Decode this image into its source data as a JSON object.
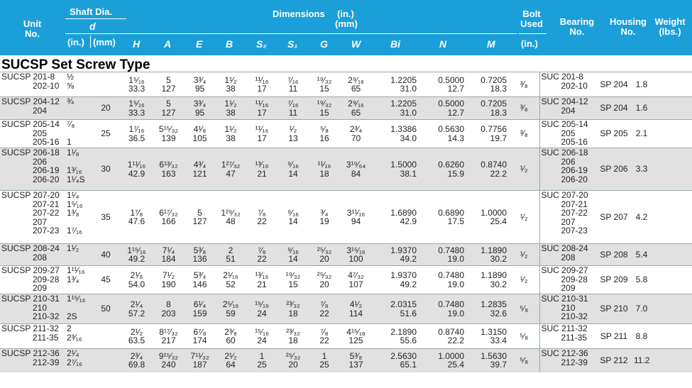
{
  "header": {
    "unit_no": [
      "Unit",
      "No."
    ],
    "shaft_dia": "Shaft Dia.",
    "shaft_d": "d",
    "shaft_in": "(in.)",
    "shaft_mm": "(mm)",
    "dimensions": "Dimensions",
    "dim_units": [
      "(in.)",
      "(mm)"
    ],
    "columns": [
      "H",
      "A",
      "E",
      "B",
      "S₂",
      "S₁",
      "G",
      "W",
      "Bi",
      "N",
      "M"
    ],
    "bolt_used": [
      "Bolt",
      "Used"
    ],
    "bolt_in": "(in.)",
    "bearing_no": [
      "Bearing",
      "No."
    ],
    "housing_no": [
      "Housing",
      "No."
    ],
    "weight": [
      "Weight",
      "(lbs.)"
    ]
  },
  "section_title": "SUCSP Set Screw Type",
  "rows": [
    {
      "unit": [
        "SUCSP 201-8",
        "202-10"
      ],
      "din": [
        "½",
        "⅝"
      ],
      "dmm": "",
      "dims": [
        [
          "1⁵⁄₁₆",
          "33.3"
        ],
        [
          "5",
          "127"
        ],
        [
          "3³⁄₄",
          "95"
        ],
        [
          "1¹⁄₂",
          "38"
        ],
        [
          "¹¹⁄₁₆",
          "17"
        ],
        [
          "⁷⁄₁₆",
          "11"
        ],
        [
          "¹⁹⁄₃₂",
          "15"
        ],
        [
          "2⁹⁄₁₆",
          "65"
        ],
        [
          "1.2205",
          "31.0"
        ],
        [
          "0.5000",
          "12.7"
        ],
        [
          "0.7205",
          "18.3"
        ]
      ],
      "bolt": "³⁄₈",
      "bearing": [
        "SUC 201-8",
        "202-10"
      ],
      "housing": "SP 204",
      "weight": "1.8"
    },
    {
      "unit": [
        "SUCSP 204-12",
        "204"
      ],
      "din": [
        "¾",
        ""
      ],
      "dmm": "20",
      "dims": [
        [
          "1⁵⁄₁₆",
          "33.3"
        ],
        [
          "5",
          "127"
        ],
        [
          "3³⁄₄",
          "95"
        ],
        [
          "1¹⁄₂",
          "38"
        ],
        [
          "¹¹⁄₁₆",
          "17"
        ],
        [
          "⁷⁄₁₆",
          "11"
        ],
        [
          "¹⁹⁄₃₂",
          "15"
        ],
        [
          "2⁹⁄₁₆",
          "65"
        ],
        [
          "1.2205",
          "31.0"
        ],
        [
          "0.5000",
          "12.7"
        ],
        [
          "0.7205",
          "18.3"
        ]
      ],
      "bolt": "³⁄₈",
      "bearing": [
        "SUC 204-12",
        "204"
      ],
      "housing": "SP 204",
      "weight": "1.6"
    },
    {
      "unit": [
        "SUCSP 205-14",
        "205",
        "205-16"
      ],
      "din": [
        "⁷⁄₈",
        "",
        "1"
      ],
      "dmm": "25",
      "dims": [
        [
          "1⁷⁄₁₆",
          "36.5"
        ],
        [
          "5¹⁵⁄₃₂",
          "139"
        ],
        [
          "4¹⁄₈",
          "105"
        ],
        [
          "1¹⁄₂",
          "38"
        ],
        [
          "¹¹⁄₁₆",
          "17"
        ],
        [
          "¹⁄₂",
          "13"
        ],
        [
          "⁵⁄₈",
          "16"
        ],
        [
          "2³⁄₄",
          "70"
        ],
        [
          "1.3386",
          "34.0"
        ],
        [
          "0.5630",
          "14.3"
        ],
        [
          "0.7756",
          "19.7"
        ]
      ],
      "bolt": "³⁄₈",
      "bearing": [
        "SUC 205-14",
        "205",
        "205-16"
      ],
      "housing": "SP 205",
      "weight": "2.1"
    },
    {
      "unit": [
        "SUCSP 206-18",
        "206",
        "206-19",
        "206-20"
      ],
      "din": [
        "1¹⁄₈",
        "",
        "1³⁄₁₆",
        "1¹⁄₄S"
      ],
      "dmm": "30",
      "dims": [
        [
          "1¹¹⁄₁₆",
          "42.9"
        ],
        [
          "6¹³⁄₃₂",
          "163"
        ],
        [
          "4³⁄₄",
          "121"
        ],
        [
          "1²⁷⁄₃₂",
          "47"
        ],
        [
          "¹³⁄₁₆",
          "21"
        ],
        [
          "⁹⁄₁₆",
          "14"
        ],
        [
          "¹¹⁄₁₆",
          "18"
        ],
        [
          "3¹⁹⁄₆₄",
          "84"
        ],
        [
          "1.5000",
          "38.1"
        ],
        [
          "0.6260",
          "15.9"
        ],
        [
          "0.8740",
          "22.2"
        ]
      ],
      "bolt": "¹⁄₂",
      "bearing": [
        "SUC 206-18",
        "206",
        "206-19",
        "206-20"
      ],
      "housing": "SP 206",
      "weight": "3.3"
    },
    {
      "unit": [
        "SUCSP 207-20",
        "207-21",
        "207-22",
        "207",
        "207-23"
      ],
      "din": [
        "1¹⁄₄",
        "1⁵⁄₁₆",
        "1³⁄₈",
        "",
        "1⁷⁄₁₆"
      ],
      "dmm": "35",
      "dims": [
        [
          "1⁷⁄₈",
          "47.6"
        ],
        [
          "6¹⁷⁄₃₂",
          "166"
        ],
        [
          "5",
          "127"
        ],
        [
          "1²⁹⁄₃₂",
          "48"
        ],
        [
          "⁷⁄₈",
          "22"
        ],
        [
          "⁹⁄₁₆",
          "14"
        ],
        [
          "³⁄₄",
          "19"
        ],
        [
          "3¹¹⁄₁₆",
          "94"
        ],
        [
          "1.6890",
          "42.9"
        ],
        [
          "0.6890",
          "17.5"
        ],
        [
          "1.0000",
          "25.4"
        ]
      ],
      "bolt": "¹⁄₂",
      "bearing": [
        "SUC 207-20",
        "207-21",
        "207-22",
        "207",
        "207-23"
      ],
      "housing": "SP 207",
      "weight": "4.2"
    },
    {
      "unit": [
        "SUCSP 208-24",
        "208"
      ],
      "din": [
        "1¹⁄₂",
        ""
      ],
      "dmm": "40",
      "dims": [
        [
          "1¹⁵⁄₁₆",
          "49.2"
        ],
        [
          "7¹⁄₄",
          "184"
        ],
        [
          "5³⁄₈",
          "136"
        ],
        [
          "2",
          "51"
        ],
        [
          "⁷⁄₈",
          "22"
        ],
        [
          "⁹⁄₁₆",
          "14"
        ],
        [
          "²⁵⁄₃₂",
          "20"
        ],
        [
          "3¹⁵⁄₁₆",
          "100"
        ],
        [
          "1.9370",
          "49.2"
        ],
        [
          "0.7480",
          "19.0"
        ],
        [
          "1.1890",
          "30.2"
        ]
      ],
      "bolt": "¹⁄₂",
      "bearing": [
        "SUC 208-24",
        "208"
      ],
      "housing": "SP 208",
      "weight": "5.4"
    },
    {
      "unit": [
        "SUCSP 209-27",
        "209-28",
        "209"
      ],
      "din": [
        "1¹¹⁄₁₆",
        "1³⁄₄",
        ""
      ],
      "dmm": "45",
      "dims": [
        [
          "2¹⁄₈",
          "54.0"
        ],
        [
          "7¹⁄₂",
          "190"
        ],
        [
          "5³⁄₄",
          "146"
        ],
        [
          "2¹⁄₁₆",
          "52"
        ],
        [
          "¹³⁄₁₆",
          "21"
        ],
        [
          "¹⁹⁄₃₂",
          "15"
        ],
        [
          "²⁵⁄₃₂",
          "20"
        ],
        [
          "4⁷⁄₃₂",
          "107"
        ],
        [
          "1.9370",
          "49.2"
        ],
        [
          "0.7480",
          "19.0"
        ],
        [
          "1.1890",
          "30.2"
        ]
      ],
      "bolt": "¹⁄₂",
      "bearing": [
        "SUC 209-27",
        "209-28",
        "209"
      ],
      "housing": "SP 209",
      "weight": "5.8"
    },
    {
      "unit": [
        "SUCSP 210-31",
        "210",
        "210-32"
      ],
      "din": [
        "1¹⁵⁄₁₆",
        "",
        "2S"
      ],
      "dmm": "50",
      "dims": [
        [
          "2¹⁄₄",
          "57.2"
        ],
        [
          "8",
          "203"
        ],
        [
          "6¹⁄₄",
          "159"
        ],
        [
          "2⁵⁄₁₆",
          "59"
        ],
        [
          "¹⁵⁄₁₆",
          "24"
        ],
        [
          "²³⁄₃₂",
          "18"
        ],
        [
          "⁷⁄₈",
          "22"
        ],
        [
          "4¹⁄₂",
          "114"
        ],
        [
          "2.0315",
          "51.6"
        ],
        [
          "0.7480",
          "19.0"
        ],
        [
          "1.2835",
          "32.6"
        ]
      ],
      "bolt": "⁵⁄₈",
      "bearing": [
        "SUC 210-31",
        "210",
        "210-32"
      ],
      "housing": "SP 210",
      "weight": "7.0"
    },
    {
      "unit": [
        "SUCSP 211-32",
        "211-35"
      ],
      "din": [
        "2",
        "2³⁄₁₆"
      ],
      "dmm": "",
      "dims": [
        [
          "2¹⁄₂",
          "63.5"
        ],
        [
          "8¹⁷⁄₃₂",
          "217"
        ],
        [
          "6⁷⁄₈",
          "174"
        ],
        [
          "2³⁄₈",
          "60"
        ],
        [
          "¹⁵⁄₁₆",
          "24"
        ],
        [
          "²³⁄₃₂",
          "18"
        ],
        [
          "⁷⁄₈",
          "22"
        ],
        [
          "4¹⁵⁄₁₆",
          "125"
        ],
        [
          "2.1890",
          "55.6"
        ],
        [
          "0.8740",
          "22.2"
        ],
        [
          "1.3150",
          "33.4"
        ]
      ],
      "bolt": "⁵⁄₈",
      "bearing": [
        "SUC 211-32",
        "211-35"
      ],
      "housing": "SP 211",
      "weight": "8.8"
    },
    {
      "unit": [
        "SUCSP 212-36",
        "212-39"
      ],
      "din": [
        "2¹⁄₄",
        "2⁷⁄₁₆"
      ],
      "dmm": "",
      "dims": [
        [
          "2³⁄₄",
          "69.8"
        ],
        [
          "9¹⁵⁄₃₂",
          "240"
        ],
        [
          "7¹¹⁄₃₂",
          "187"
        ],
        [
          "2¹⁄₂",
          "64"
        ],
        [
          "1",
          "25"
        ],
        [
          "²⁵⁄₃₂",
          "20"
        ],
        [
          "1",
          "25"
        ],
        [
          "5³⁄₈",
          "137"
        ],
        [
          "2.5630",
          "65.1"
        ],
        [
          "1.0000",
          "25.4"
        ],
        [
          "1.5630",
          "39.7"
        ]
      ],
      "bolt": "⁵⁄₈",
      "bearing": [
        "SUC 212-36",
        "212-39"
      ],
      "housing": "SP 212",
      "weight": "11.2"
    }
  ]
}
